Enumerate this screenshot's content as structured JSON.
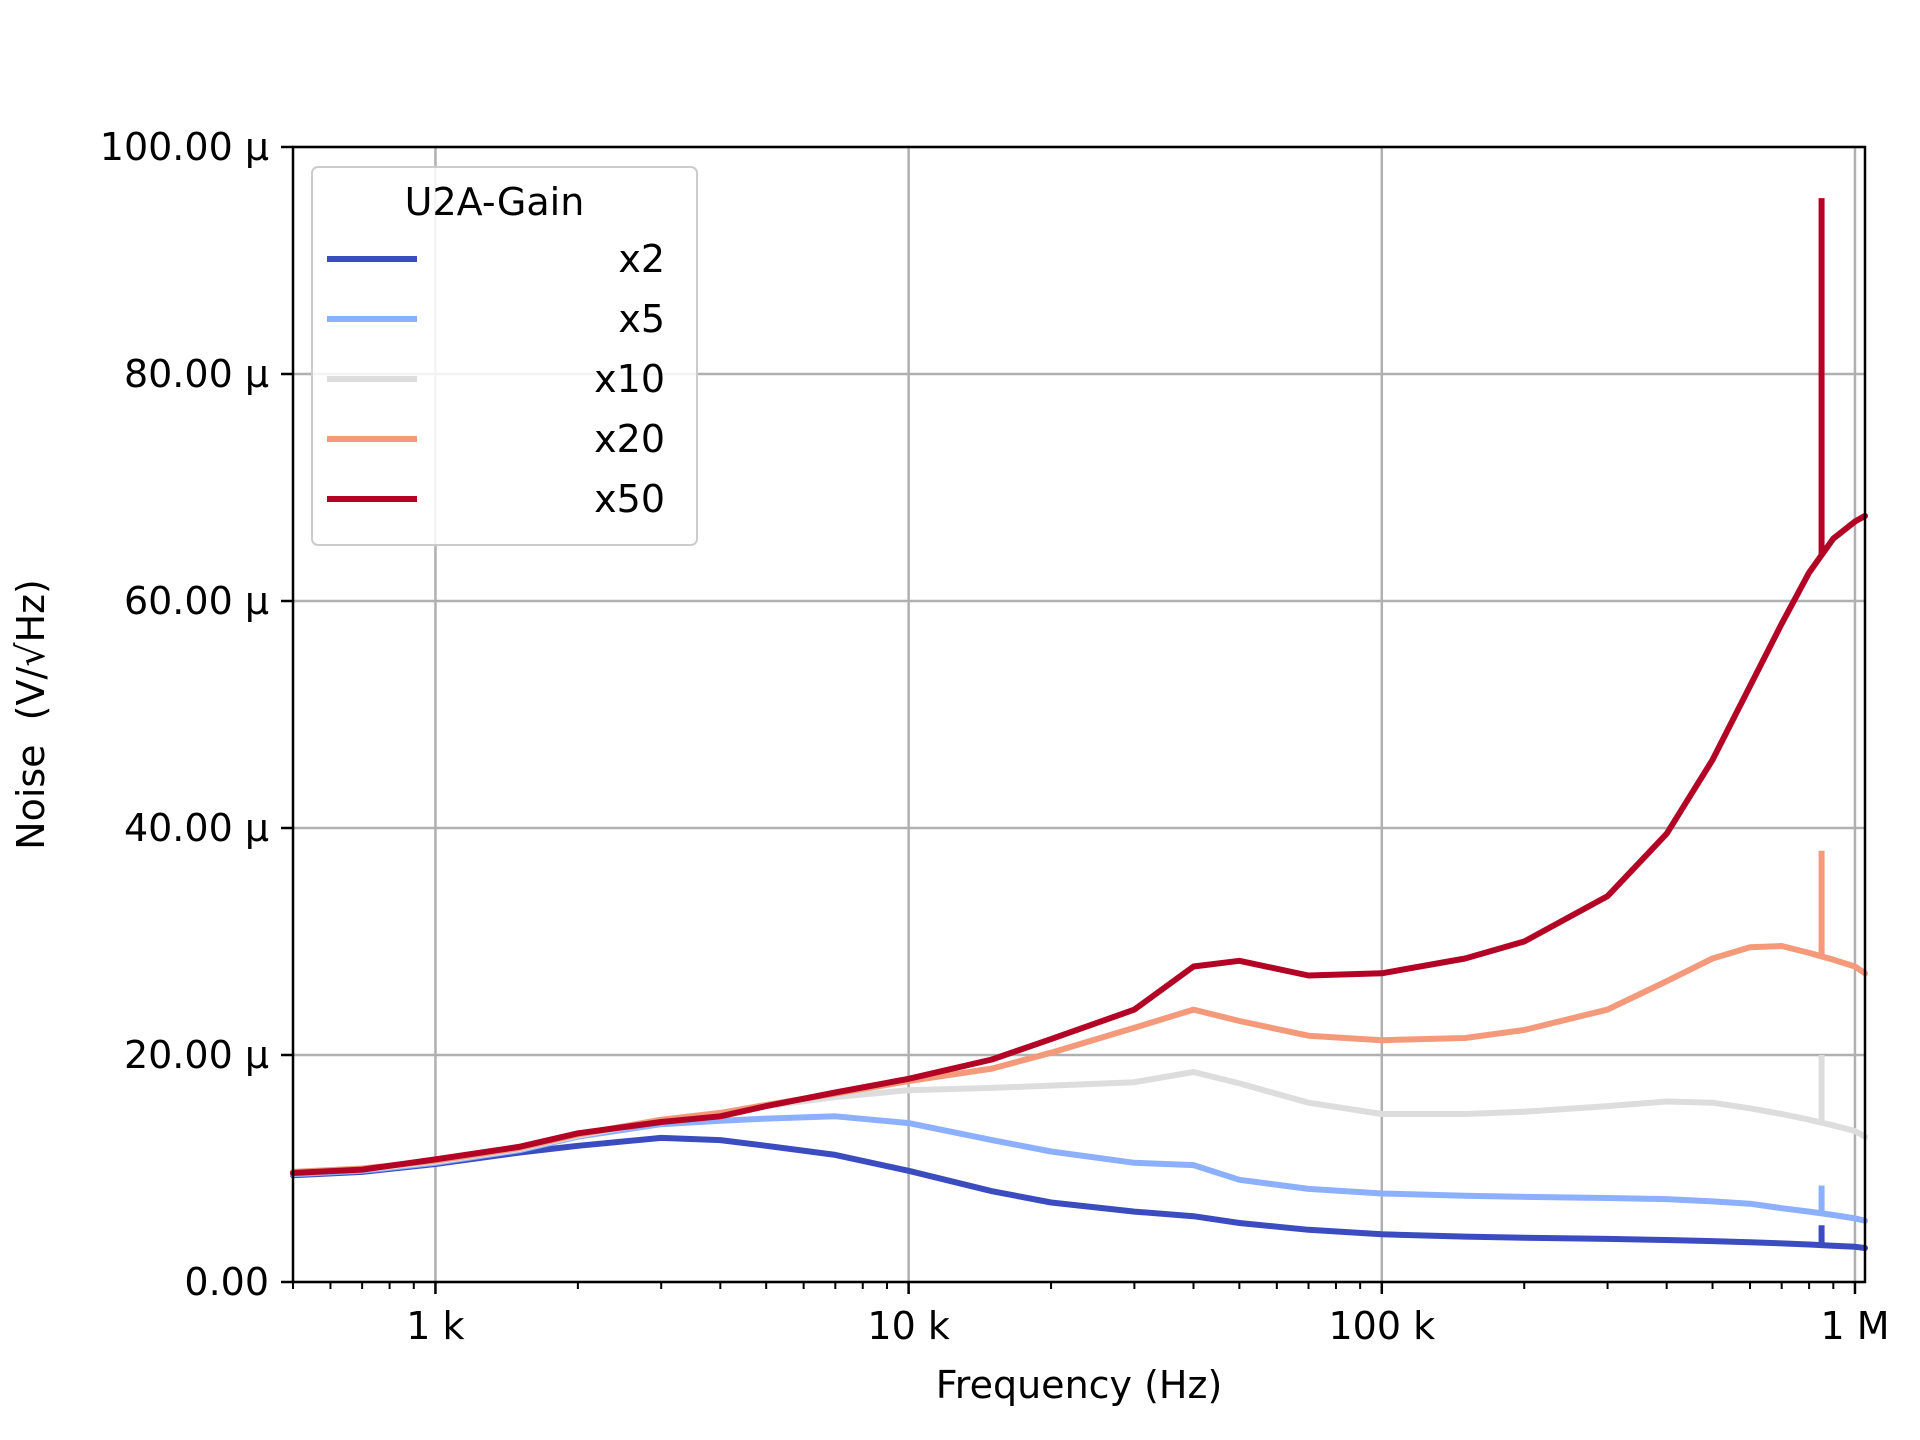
{
  "chart_data": {
    "type": "line",
    "xlabel": "Frequency (Hz)",
    "ylabel": "Noise",
    "ylabel_unit": "(V/√Hz)",
    "xscale": "log",
    "xlim": [
      500,
      1050000
    ],
    "ylim": [
      0,
      100
    ],
    "grid": true,
    "x_ticks": [
      {
        "value": 1000,
        "label": "1 k"
      },
      {
        "value": 10000,
        "label": "10 k"
      },
      {
        "value": 100000,
        "label": "100 k"
      },
      {
        "value": 1000000,
        "label": "1 M"
      }
    ],
    "y_ticks": [
      {
        "value": 0,
        "label": "0.00"
      },
      {
        "value": 20,
        "label": "20.00 µ"
      },
      {
        "value": 40,
        "label": "40.00 µ"
      },
      {
        "value": 60,
        "label": "60.00 µ"
      },
      {
        "value": 80,
        "label": "80.00 µ"
      },
      {
        "value": 100,
        "label": "100.00 µ"
      }
    ],
    "legend": {
      "title": "U2A-Gain",
      "placement": "top-left"
    },
    "x": [
      500,
      700,
      1000,
      1500,
      2000,
      3000,
      4000,
      5000,
      7000,
      10000,
      15000,
      20000,
      30000,
      40000,
      50000,
      70000,
      100000,
      150000,
      200000,
      300000,
      400000,
      500000,
      600000,
      700000,
      800000,
      900000,
      1000000,
      1050000
    ],
    "series": [
      {
        "name": "x2",
        "color": "#3b4cc0",
        "values": [
          9.4,
          9.7,
          10.4,
          11.4,
          12.0,
          12.7,
          12.5,
          12.0,
          11.2,
          9.8,
          8.0,
          7.0,
          6.2,
          5.8,
          5.2,
          4.6,
          4.2,
          4.0,
          3.9,
          3.8,
          3.7,
          3.6,
          3.5,
          3.4,
          3.3,
          3.2,
          3.1,
          3.0
        ]
      },
      {
        "name": "x5",
        "color": "#8db0fe",
        "values": [
          9.5,
          9.8,
          10.5,
          11.6,
          12.8,
          13.9,
          14.2,
          14.4,
          14.6,
          14.0,
          12.5,
          11.5,
          10.5,
          10.3,
          9.0,
          8.2,
          7.8,
          7.6,
          7.5,
          7.4,
          7.3,
          7.1,
          6.9,
          6.5,
          6.2,
          5.9,
          5.6,
          5.4
        ]
      },
      {
        "name": "x10",
        "color": "#dddddd",
        "values": [
          9.6,
          9.9,
          10.6,
          11.7,
          12.9,
          14.2,
          14.9,
          15.5,
          16.3,
          16.9,
          17.1,
          17.3,
          17.6,
          18.5,
          17.5,
          15.8,
          14.8,
          14.8,
          15.0,
          15.5,
          15.9,
          15.8,
          15.3,
          14.8,
          14.3,
          13.8,
          13.3,
          12.8
        ]
      },
      {
        "name": "x20",
        "color": "#f49a7b",
        "values": [
          9.7,
          10.0,
          10.7,
          11.8,
          13.0,
          14.3,
          14.9,
          15.6,
          16.6,
          17.7,
          18.8,
          20.2,
          22.4,
          24.0,
          23.0,
          21.7,
          21.3,
          21.5,
          22.2,
          24.0,
          26.5,
          28.5,
          29.5,
          29.6,
          29.0,
          28.4,
          27.8,
          27.2
        ]
      },
      {
        "name": "x50",
        "color": "#b40426",
        "values": [
          9.6,
          9.9,
          10.8,
          11.9,
          13.1,
          14.1,
          14.6,
          15.5,
          16.7,
          17.9,
          19.6,
          21.4,
          24.0,
          27.8,
          28.3,
          27.0,
          27.2,
          28.5,
          30.0,
          34.0,
          39.5,
          46.0,
          52.5,
          58.0,
          62.5,
          65.5,
          67.0,
          67.5
        ]
      }
    ],
    "spikes": [
      {
        "series": "x50",
        "x": 850000,
        "value": 95.5
      },
      {
        "series": "x20",
        "x": 850000,
        "value": 38.0
      },
      {
        "series": "x10",
        "x": 850000,
        "value": 20.0
      },
      {
        "series": "x5",
        "x": 850000,
        "value": 8.5
      },
      {
        "series": "x2",
        "x": 850000,
        "value": 5.0
      }
    ]
  }
}
